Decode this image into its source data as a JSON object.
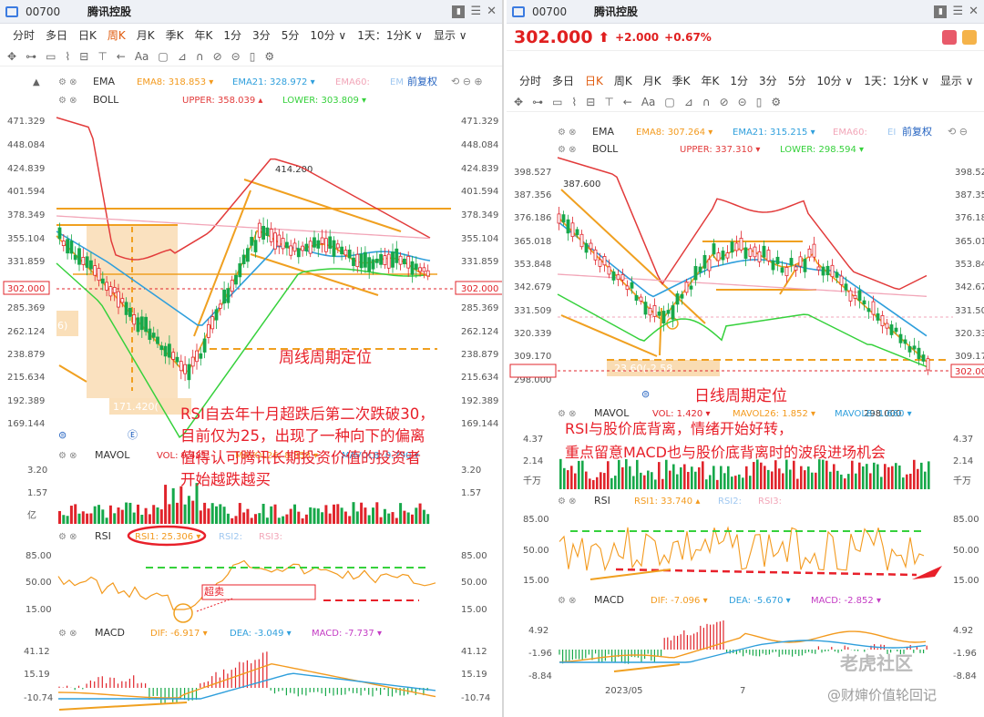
{
  "left": {
    "stock_code": "00700",
    "stock_name": "腾讯控股",
    "periods": [
      "分时",
      "多日",
      "日K",
      "周K",
      "月K",
      "季K",
      "年K",
      "1分",
      "3分",
      "5分",
      "10分 ∨",
      "1天：1分K ∨",
      "显示 ∨"
    ],
    "active_period": "周K",
    "ema_row": {
      "name": "EMA",
      "ema8": "EMA8: 318.853 ▾",
      "ema21": "EMA21: 328.972 ▾",
      "ema60": "EMA60:",
      "extra": "EM",
      "adj": "前复权"
    },
    "boll_row": {
      "name": "BOLL",
      "upper": "UPPER: 358.039 ▴",
      "lower": "LOWER: 303.809 ▾"
    },
    "price_axis": [
      "471.329",
      "448.084",
      "424.839",
      "401.594",
      "378.349",
      "355.104",
      "331.859",
      "302.000",
      "285.369",
      "262.124",
      "238.879",
      "215.634",
      "192.389",
      "169.144"
    ],
    "current_price": "302.000",
    "high_label": "414.200",
    "low_label": "171.420(",
    "left_tag": "6)",
    "mavol_row": {
      "name": "MAVOL",
      "vol": "VOL: 9.481",
      "mavol26": "MAVOL26: 8.858 ▾",
      "mavol8": "MAVOL8: 0.790 ▾"
    },
    "vol_axis": [
      "3.20",
      "1.57",
      "亿"
    ],
    "rsi_row": {
      "name": "RSI",
      "rsi1": "RSI1: 25.306 ▾",
      "rsi2": "RSI2:",
      "rsi3": "RSI3:"
    },
    "rsi_axis": [
      "85.00",
      "50.00",
      "15.00"
    ],
    "oversold_label": "超卖",
    "macd_row": {
      "name": "MACD",
      "dif": "DIF: -6.917 ▾",
      "dea": "DEA: -3.049 ▾",
      "macd": "MACD: -7.737 ▾"
    },
    "macd_axis": [
      "41.12",
      "15.19",
      "-10.74"
    ],
    "annotation_title": "周线周期定位",
    "annotation_body": [
      "RSI自去年十月超跌后第二次跌破30，",
      "目前仅为25，出现了一种向下的偏离",
      "值得认可腾讯长期投资价值的投资者",
      "开始越跌越买"
    ]
  },
  "right": {
    "stock_code": "00700",
    "stock_name": "腾讯控股",
    "price": "302.000",
    "arrow": "⬆",
    "change": "+2.000",
    "change_pct": "+0.67%",
    "periods": [
      "分时",
      "多日",
      "日K",
      "周K",
      "月K",
      "季K",
      "年K",
      "1分",
      "3分",
      "5分",
      "10分 ∨",
      "1天：1分K ∨",
      "显示 ∨"
    ],
    "active_period": "日K",
    "ema_row": {
      "name": "EMA",
      "ema8": "EMA8: 307.264 ▾",
      "ema21": "EMA21: 315.215 ▾",
      "ema60": "EMA60:",
      "extra": "EI",
      "adj": "前复权"
    },
    "boll_row": {
      "name": "BOLL",
      "upper": "UPPER: 337.310 ▾",
      "lower": "LOWER: 298.594 ▾"
    },
    "price_axis": [
      "398.52",
      "387.35",
      "376.18",
      "365.01",
      "353.84",
      "342.67",
      "331.50",
      "320.33",
      "309.17",
      "302.000"
    ],
    "left_axis": [
      "398.527",
      "387.356",
      "376.186",
      "365.018",
      "353.848",
      "342.679",
      "331.509",
      "320.339",
      "309.170",
      "302.000",
      "298.000"
    ],
    "current_price": "302.000",
    "high_label": "387.600",
    "low_label": "298.000",
    "low_box": "23.60(-2.58",
    "mavol_row": {
      "name": "MAVOL",
      "vol": "VOL: 1.420 ▾",
      "mavol26": "MAVOL26: 1.852 ▾",
      "mavol8": "MAVOL8: 1.660 ▾"
    },
    "vol_axis": [
      "4.37",
      "2.14",
      "千万"
    ],
    "rsi_row": {
      "name": "RSI",
      "rsi1": "RSI1: 33.740 ▴",
      "rsi2": "RSI2:",
      "rsi3": "RSI3:"
    },
    "rsi_axis": [
      "85.00",
      "50.00",
      "15.00"
    ],
    "macd_row": {
      "name": "MACD",
      "dif": "DIF: -7.096 ▾",
      "dea": "DEA: -5.670 ▾",
      "macd": "MACD: -2.852 ▾"
    },
    "macd_axis": [
      "4.92",
      "-1.96",
      "-8.84"
    ],
    "date_labels": [
      "2023/05",
      "7"
    ],
    "annotation_title": "日线周期定位",
    "annotation_body": [
      "RSI与股价底背离，情绪开始好转，",
      "重点留意MACD也与股价底背离时的波段进场机会"
    ],
    "watermark_1": "老虎社区",
    "watermark_2": "@财婶价值轮回记"
  },
  "colors": {
    "up": "#e0242b",
    "down": "#17a84a",
    "ema8": "#f39a1e",
    "ema21": "#2f9fdc",
    "upper": "#e23b3b",
    "lower": "#36d13c",
    "accent": "#e05a0c",
    "annotation": "#e8202a",
    "orange_line": "#f0a020",
    "zone": "#f6c98a"
  }
}
